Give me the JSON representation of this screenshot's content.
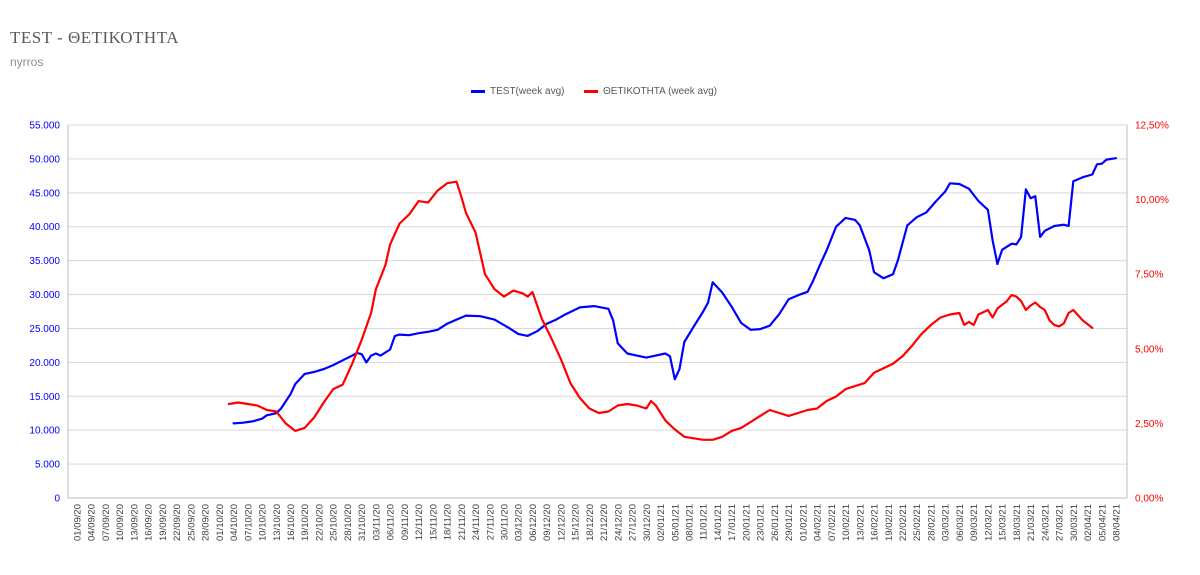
{
  "title": "TEST - ΘΕΤΙΚΟΤΗΤΑ",
  "subtitle": "nyrros",
  "chart_data": {
    "type": "line",
    "title": "TEST - ΘΕΤΙΚΟΤΗΤΑ",
    "subtitle": "nyrros",
    "legend_position": "top-center",
    "grid": true,
    "x_tick_labels": [
      "01/09/20",
      "04/09/20",
      "07/09/20",
      "10/09/20",
      "13/09/20",
      "16/09/20",
      "19/09/20",
      "22/09/20",
      "25/09/20",
      "28/09/20",
      "01/10/20",
      "04/10/20",
      "07/10/20",
      "10/10/20",
      "13/10/20",
      "16/10/20",
      "19/10/20",
      "22/10/20",
      "25/10/20",
      "28/10/20",
      "31/10/20",
      "03/11/20",
      "06/11/20",
      "09/11/20",
      "12/11/20",
      "15/11/20",
      "18/11/20",
      "21/11/20",
      "24/11/20",
      "27/11/20",
      "30/11/20",
      "03/12/20",
      "06/12/20",
      "09/12/20",
      "12/12/20",
      "15/12/20",
      "18/12/20",
      "21/12/20",
      "24/12/20",
      "27/12/20",
      "30/12/20",
      "02/01/21",
      "05/01/21",
      "08/01/21",
      "11/01/21",
      "14/01/21",
      "17/01/21",
      "20/01/21",
      "23/01/21",
      "26/01/21",
      "29/01/21",
      "01/02/21",
      "04/02/21",
      "07/02/21",
      "10/02/21",
      "13/02/21",
      "16/02/21",
      "19/02/21",
      "22/02/21",
      "25/02/21",
      "28/02/21",
      "03/03/21",
      "06/03/21",
      "09/03/21",
      "12/03/21",
      "15/03/21",
      "18/03/21",
      "21/03/21",
      "24/03/21",
      "27/03/21",
      "30/03/21",
      "02/04/21",
      "05/04/21",
      "08/04/21"
    ],
    "y_left": {
      "min": 0,
      "max": 55000,
      "step": 5000,
      "color": "#0000ff",
      "tick_labels": [
        "0",
        "5.000",
        "10.000",
        "15.000",
        "20.000",
        "25.000",
        "30.000",
        "35.000",
        "40.000",
        "45.000",
        "50.000",
        "55.000"
      ]
    },
    "y_right": {
      "min": 0,
      "max": 12.5,
      "step": 2.5,
      "color": "#ff0000",
      "unit": "%",
      "tick_labels": [
        "0,00%",
        "2,50%",
        "5,00%",
        "7,50%",
        "10,00%",
        "12,50%"
      ]
    },
    "series": [
      {
        "name": "TEST(week avg)",
        "color": "#0000ff",
        "axis": "left",
        "points": [
          [
            33,
            11000
          ],
          [
            35,
            11100
          ],
          [
            37,
            11300
          ],
          [
            39,
            11700
          ],
          [
            40,
            12200
          ],
          [
            42,
            12500
          ],
          [
            43,
            13200
          ],
          [
            45,
            15300
          ],
          [
            46,
            16800
          ],
          [
            48,
            18300
          ],
          [
            50,
            18600
          ],
          [
            52,
            19000
          ],
          [
            54,
            19600
          ],
          [
            56,
            20300
          ],
          [
            58,
            21000
          ],
          [
            59,
            21400
          ],
          [
            60,
            21200
          ],
          [
            61,
            20000
          ],
          [
            62,
            21000
          ],
          [
            63,
            21300
          ],
          [
            64,
            21000
          ],
          [
            66,
            21900
          ],
          [
            67,
            23900
          ],
          [
            68,
            24100
          ],
          [
            70,
            24000
          ],
          [
            72,
            24300
          ],
          [
            74,
            24500
          ],
          [
            76,
            24800
          ],
          [
            78,
            25700
          ],
          [
            80,
            26300
          ],
          [
            82,
            26900
          ],
          [
            85,
            26800
          ],
          [
            88,
            26300
          ],
          [
            91,
            25100
          ],
          [
            93,
            24200
          ],
          [
            95,
            23900
          ],
          [
            97,
            24600
          ],
          [
            99,
            25700
          ],
          [
            101,
            26300
          ],
          [
            103,
            27100
          ],
          [
            106,
            28100
          ],
          [
            109,
            28300
          ],
          [
            112,
            27900
          ],
          [
            113,
            26200
          ],
          [
            114,
            22800
          ],
          [
            116,
            21300
          ],
          [
            118,
            21000
          ],
          [
            120,
            20700
          ],
          [
            122,
            21000
          ],
          [
            124,
            21300
          ],
          [
            125,
            20900
          ],
          [
            126,
            17500
          ],
          [
            127,
            19000
          ],
          [
            128,
            23000
          ],
          [
            130,
            25300
          ],
          [
            132,
            27500
          ],
          [
            133,
            28800
          ],
          [
            134,
            31800
          ],
          [
            136,
            30300
          ],
          [
            138,
            28200
          ],
          [
            140,
            25800
          ],
          [
            142,
            24800
          ],
          [
            144,
            24900
          ],
          [
            146,
            25400
          ],
          [
            148,
            27100
          ],
          [
            150,
            29300
          ],
          [
            152,
            29900
          ],
          [
            154,
            30400
          ],
          [
            155,
            31800
          ],
          [
            157,
            35000
          ],
          [
            158,
            36500
          ],
          [
            160,
            40000
          ],
          [
            162,
            41300
          ],
          [
            164,
            41000
          ],
          [
            165,
            40200
          ],
          [
            167,
            36500
          ],
          [
            168,
            33300
          ],
          [
            170,
            32400
          ],
          [
            172,
            33000
          ],
          [
            173,
            35000
          ],
          [
            175,
            40200
          ],
          [
            177,
            41400
          ],
          [
            179,
            42100
          ],
          [
            181,
            43700
          ],
          [
            183,
            45200
          ],
          [
            184,
            46400
          ],
          [
            186,
            46300
          ],
          [
            188,
            45600
          ],
          [
            190,
            43800
          ],
          [
            192,
            42500
          ],
          [
            193,
            38000
          ],
          [
            194,
            34500
          ],
          [
            195,
            36600
          ],
          [
            197,
            37500
          ],
          [
            198,
            37400
          ],
          [
            199,
            38500
          ],
          [
            200,
            45500
          ],
          [
            201,
            44200
          ],
          [
            202,
            44500
          ],
          [
            203,
            38500
          ],
          [
            204,
            39400
          ],
          [
            206,
            40100
          ],
          [
            208,
            40300
          ],
          [
            209,
            40100
          ],
          [
            210,
            46700
          ],
          [
            212,
            47300
          ],
          [
            214,
            47700
          ],
          [
            215,
            49200
          ],
          [
            216,
            49300
          ],
          [
            217,
            49900
          ],
          [
            219,
            50100
          ]
        ]
      },
      {
        "name": "ΘΕΤΙΚΟΤΗΤΑ (week avg)",
        "color": "#ff0000",
        "axis": "right",
        "points": [
          [
            32,
            3.15
          ],
          [
            34,
            3.2
          ],
          [
            36,
            3.15
          ],
          [
            38,
            3.1
          ],
          [
            40,
            2.95
          ],
          [
            42,
            2.9
          ],
          [
            44,
            2.5
          ],
          [
            46,
            2.25
          ],
          [
            48,
            2.35
          ],
          [
            50,
            2.7
          ],
          [
            52,
            3.2
          ],
          [
            54,
            3.65
          ],
          [
            56,
            3.8
          ],
          [
            58,
            4.5
          ],
          [
            60,
            5.3
          ],
          [
            62,
            6.2
          ],
          [
            63,
            7.0
          ],
          [
            65,
            7.8
          ],
          [
            66,
            8.5
          ],
          [
            68,
            9.2
          ],
          [
            70,
            9.5
          ],
          [
            72,
            9.95
          ],
          [
            74,
            9.9
          ],
          [
            76,
            10.3
          ],
          [
            78,
            10.55
          ],
          [
            80,
            10.6
          ],
          [
            81,
            10.1
          ],
          [
            82,
            9.55
          ],
          [
            84,
            8.9
          ],
          [
            86,
            7.5
          ],
          [
            88,
            7.0
          ],
          [
            90,
            6.75
          ],
          [
            92,
            6.95
          ],
          [
            94,
            6.85
          ],
          [
            95,
            6.75
          ],
          [
            96,
            6.9
          ],
          [
            98,
            6.0
          ],
          [
            100,
            5.35
          ],
          [
            102,
            4.65
          ],
          [
            104,
            3.85
          ],
          [
            106,
            3.35
          ],
          [
            108,
            3.0
          ],
          [
            110,
            2.85
          ],
          [
            112,
            2.9
          ],
          [
            114,
            3.1
          ],
          [
            116,
            3.15
          ],
          [
            118,
            3.1
          ],
          [
            120,
            3.0
          ],
          [
            121,
            3.25
          ],
          [
            122,
            3.1
          ],
          [
            124,
            2.6
          ],
          [
            126,
            2.3
          ],
          [
            128,
            2.05
          ],
          [
            130,
            2.0
          ],
          [
            132,
            1.95
          ],
          [
            134,
            1.95
          ],
          [
            136,
            2.05
          ],
          [
            138,
            2.25
          ],
          [
            140,
            2.35
          ],
          [
            142,
            2.55
          ],
          [
            144,
            2.75
          ],
          [
            146,
            2.95
          ],
          [
            148,
            2.85
          ],
          [
            150,
            2.75
          ],
          [
            152,
            2.85
          ],
          [
            154,
            2.95
          ],
          [
            156,
            3.0
          ],
          [
            158,
            3.25
          ],
          [
            160,
            3.4
          ],
          [
            162,
            3.65
          ],
          [
            164,
            3.75
          ],
          [
            166,
            3.85
          ],
          [
            168,
            4.2
          ],
          [
            170,
            4.35
          ],
          [
            172,
            4.5
          ],
          [
            174,
            4.75
          ],
          [
            176,
            5.1
          ],
          [
            178,
            5.5
          ],
          [
            180,
            5.8
          ],
          [
            182,
            6.05
          ],
          [
            184,
            6.15
          ],
          [
            186,
            6.2
          ],
          [
            187,
            5.8
          ],
          [
            188,
            5.9
          ],
          [
            189,
            5.8
          ],
          [
            190,
            6.15
          ],
          [
            192,
            6.3
          ],
          [
            193,
            6.05
          ],
          [
            194,
            6.35
          ],
          [
            196,
            6.6
          ],
          [
            197,
            6.8
          ],
          [
            198,
            6.75
          ],
          [
            199,
            6.6
          ],
          [
            200,
            6.3
          ],
          [
            201,
            6.45
          ],
          [
            202,
            6.55
          ],
          [
            203,
            6.4
          ],
          [
            204,
            6.3
          ],
          [
            205,
            5.95
          ],
          [
            206,
            5.8
          ],
          [
            207,
            5.75
          ],
          [
            208,
            5.85
          ],
          [
            209,
            6.2
          ],
          [
            210,
            6.3
          ],
          [
            212,
            5.95
          ],
          [
            214,
            5.7
          ]
        ]
      }
    ]
  }
}
